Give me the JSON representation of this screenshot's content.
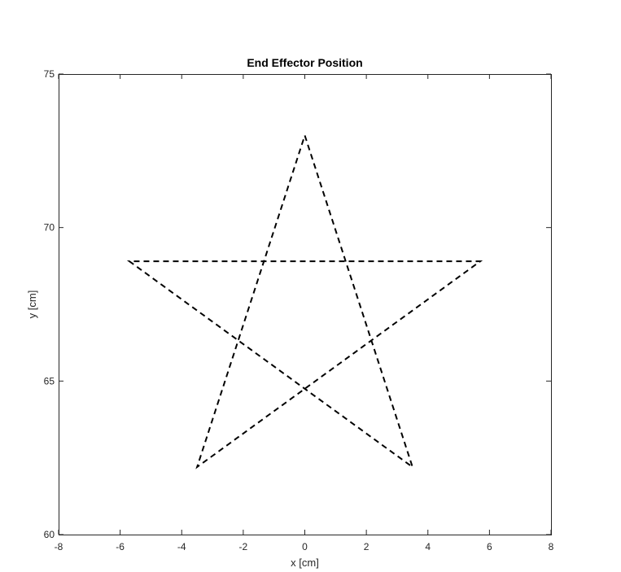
{
  "chart_data": {
    "type": "line",
    "title": "End Effector Position",
    "xlabel": "x [cm]",
    "ylabel": "y [cm]",
    "xlim": [
      -8,
      8
    ],
    "ylim": [
      60,
      75
    ],
    "xticks": [
      -8,
      -6,
      -4,
      -2,
      0,
      2,
      4,
      6,
      8
    ],
    "yticks": [
      60,
      65,
      70,
      75
    ],
    "grid": false,
    "series": [
      {
        "line_style": "dashed",
        "color": "#000000",
        "x": [
          0,
          3.5,
          -5.7,
          5.7,
          -3.5,
          0
        ],
        "y": [
          73.0,
          62.2,
          68.9,
          68.9,
          62.2,
          73.0
        ]
      }
    ]
  }
}
